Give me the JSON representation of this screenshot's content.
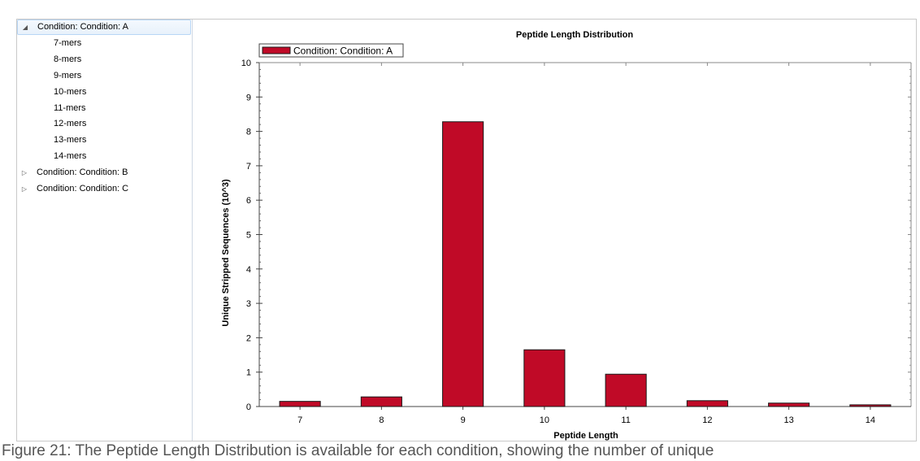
{
  "tree": {
    "groups": [
      {
        "label": "Condition: Condition: A",
        "expanded": true,
        "selected": true,
        "children": [
          "7-mers",
          "8-mers",
          "9-mers",
          "10-mers",
          "11-mers",
          "12-mers",
          "13-mers",
          "14-mers"
        ]
      },
      {
        "label": "Condition: Condition: B",
        "expanded": false,
        "selected": false,
        "children": []
      },
      {
        "label": "Condition: Condition: C",
        "expanded": false,
        "selected": false,
        "children": []
      }
    ]
  },
  "colors": {
    "bar": "#c00a27",
    "bar_border": "#1a1a1a",
    "axis": "#333333"
  },
  "chart_data": {
    "type": "bar",
    "title": "Peptide Length Distribution",
    "xlabel": "Peptide Length",
    "ylabel": "Unique Stripped Sequences (10^3)",
    "categories": [
      "7",
      "8",
      "9",
      "10",
      "11",
      "12",
      "13",
      "14"
    ],
    "series": [
      {
        "name": "Condition: Condition: A",
        "values": [
          0.15,
          0.28,
          8.28,
          1.65,
          0.94,
          0.17,
          0.1,
          0.05
        ]
      }
    ],
    "ylim": [
      0,
      10
    ],
    "yticks": [
      "0",
      "1",
      "2",
      "3",
      "4",
      "5",
      "6",
      "7",
      "8",
      "9",
      "10"
    ],
    "legend_position": "top-left",
    "grid": false
  },
  "caption": "Figure 21: The Peptide Length Distribution is available for each condition, showing the number of unique"
}
